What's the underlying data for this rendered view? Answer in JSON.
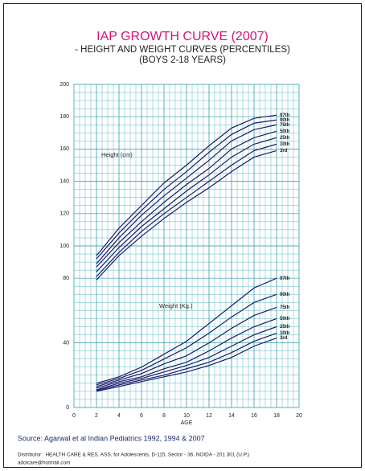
{
  "chart_data": {
    "type": "line",
    "title": "IAP GROWTH CURVE (2007)",
    "subtitle": "- HEIGHT AND WEIGHT CURVES (PERCENTILES)",
    "subtitle2": "(BOYS 2-18 YEARS)",
    "x_label": "AGE",
    "annotations": [
      "Height (cm)",
      "Weight (Kg.)"
    ],
    "source": "Source: Agarwal et al Indian Pediatrics 1992, 1994 & 2007",
    "distributor": "Distributor : HEALTH CARE & RES. ASS. for Adolescents,  D-115, Sector - 36, NOIDA - 201 301 (U.P.)",
    "email": "adolcare@hotmail.com",
    "x": [
      2,
      4,
      6,
      8,
      10,
      12,
      14,
      16,
      18
    ],
    "xlim": [
      0,
      20
    ],
    "xticks": [
      0,
      2,
      4,
      6,
      8,
      10,
      12,
      14,
      16,
      18,
      20
    ],
    "ylim": [
      0,
      200
    ],
    "yticks": [
      0,
      40,
      80,
      100,
      120,
      140,
      160,
      180,
      200
    ],
    "grid": true,
    "color": "#1c1c6b",
    "series": [
      {
        "name": "3rd",
        "values": [
          79,
          94,
          106,
          117,
          127,
          136,
          146,
          155,
          159
        ]
      },
      {
        "name": "10th",
        "values": [
          81,
          96,
          109,
          120,
          130,
          140,
          150,
          159,
          163
        ]
      },
      {
        "name": "25th",
        "values": [
          84,
          99,
          112,
          123,
          134,
          144,
          155,
          163,
          167
        ]
      },
      {
        "name": "50th",
        "values": [
          87,
          102,
          115,
          127,
          138,
          148,
          160,
          167,
          171
        ]
      },
      {
        "name": "75th",
        "values": [
          89,
          105,
          119,
          131,
          142,
          153,
          165,
          172,
          175
        ]
      },
      {
        "name": "90th",
        "values": [
          92,
          108,
          122,
          135,
          146,
          158,
          169,
          176,
          178
        ]
      },
      {
        "name": "97th",
        "values": [
          94,
          111,
          125,
          139,
          150,
          162,
          173,
          179,
          181
        ]
      },
      {
        "name": "3rd",
        "values": [
          10,
          13,
          16,
          19,
          22,
          26,
          31,
          38,
          43
        ]
      },
      {
        "name": "10th",
        "values": [
          10.5,
          14,
          17,
          20,
          24,
          28,
          34,
          41,
          46
        ]
      },
      {
        "name": "25th",
        "values": [
          11,
          15,
          18,
          22,
          26,
          31,
          38,
          45,
          50
        ]
      },
      {
        "name": "50th",
        "values": [
          12,
          16,
          19,
          24,
          28,
          35,
          43,
          50,
          55
        ]
      },
      {
        "name": "75th",
        "values": [
          13,
          17,
          21,
          27,
          32,
          40,
          49,
          57,
          62
        ]
      },
      {
        "name": "90th",
        "values": [
          14,
          18,
          23,
          30,
          37,
          46,
          56,
          65,
          70
        ]
      },
      {
        "name": "97th",
        "values": [
          15,
          19,
          25,
          33,
          41,
          52,
          63,
          74,
          80
        ]
      }
    ]
  }
}
